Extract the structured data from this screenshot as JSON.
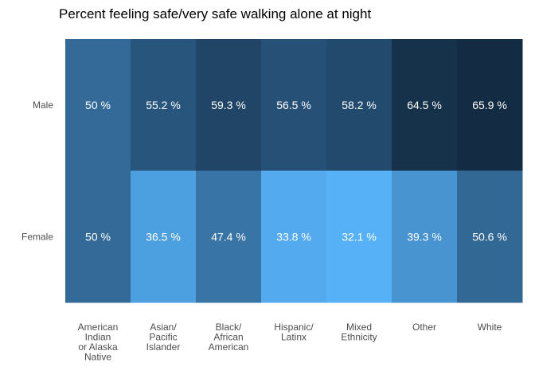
{
  "chart_data": {
    "type": "heatmap",
    "title": "Percent feeling safe/very safe walking alone at night",
    "xlabel": "",
    "ylabel": "",
    "rows": [
      "Male",
      "Female"
    ],
    "columns": [
      [
        "American",
        "Indian",
        "or Alaska",
        "Native"
      ],
      [
        "Asian/",
        "Pacific",
        "Islander"
      ],
      [
        "Black/",
        "African",
        "American"
      ],
      [
        "Hispanic/",
        "Latinx"
      ],
      [
        "Mixed",
        "Ethnicity"
      ],
      [
        "Other"
      ],
      [
        "White"
      ]
    ],
    "values": [
      [
        50,
        55.2,
        59.3,
        56.5,
        58.2,
        64.5,
        65.9
      ],
      [
        50,
        36.5,
        47.4,
        33.8,
        32.1,
        39.3,
        50.6
      ]
    ],
    "value_suffix": " %",
    "color_scale": {
      "low": "#56b1f7",
      "high": "#132b43",
      "domain": [
        32.1,
        65.9
      ]
    },
    "grid": false,
    "legend": "none"
  }
}
